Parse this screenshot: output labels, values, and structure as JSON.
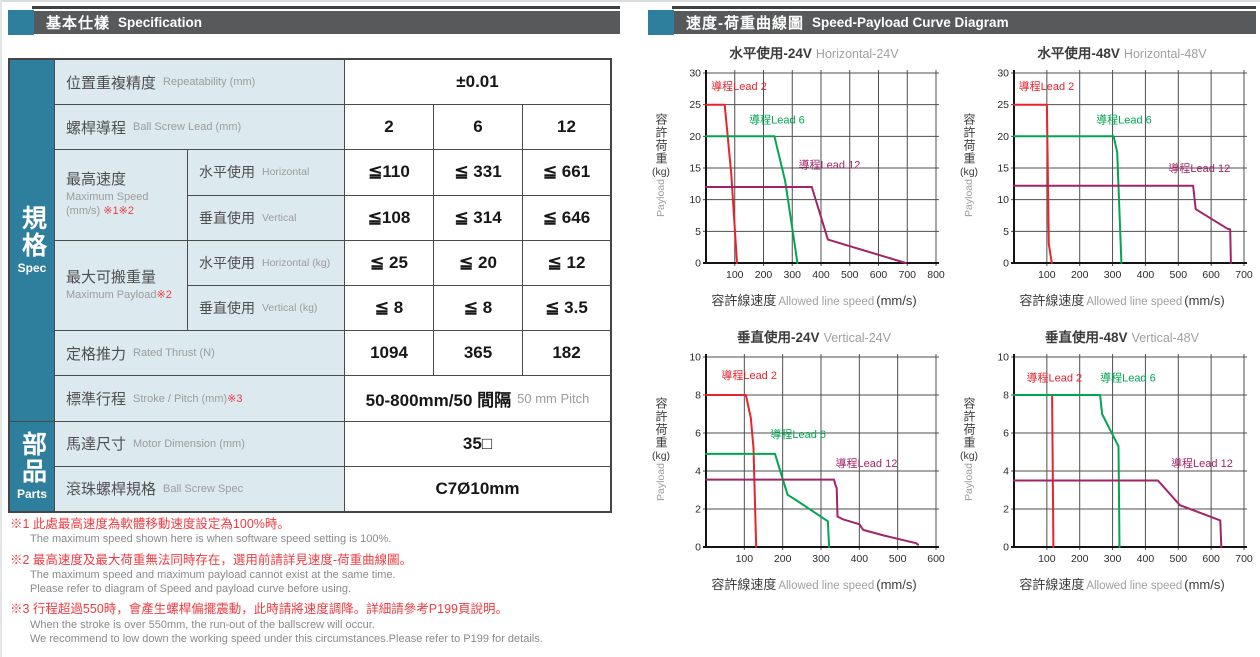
{
  "left": {
    "header": {
      "zh": "基本仕樣",
      "en": "Specification"
    },
    "sidebar": {
      "spec_zh": "規格",
      "spec_en": "Spec",
      "parts_zh": "部品",
      "parts_en": "Parts"
    },
    "rows": {
      "repeatability": {
        "zh": "位置重複精度",
        "en": "Repeatability (mm)",
        "value": "±0.01"
      },
      "lead": {
        "zh": "螺桿導程",
        "en": "Ball Screw Lead (mm)",
        "values": [
          "2",
          "6",
          "12"
        ]
      },
      "max_speed": {
        "zh": "最高速度",
        "en1": "Maximum Speed",
        "en2": "(mm/s)",
        "note": "※1※2",
        "horizontal": {
          "zh": "水平使用",
          "en": "Horizontal",
          "values": [
            "≦110",
            "≦ 331",
            "≦ 661"
          ]
        },
        "vertical": {
          "zh": "垂直使用",
          "en": "Vertical",
          "values": [
            "≦108",
            "≦ 314",
            "≦ 646"
          ]
        }
      },
      "max_payload": {
        "zh": "最大可搬重量",
        "en": "Maximum Payload",
        "note": "※2",
        "horizontal": {
          "zh": "水平使用",
          "en": "Horizontal (kg)",
          "values": [
            "≦ 25",
            "≦ 20",
            "≦ 12"
          ]
        },
        "vertical": {
          "zh": "垂直使用",
          "en": "Vertical (kg)",
          "values": [
            "≦ 8",
            "≦ 8",
            "≦ 3.5"
          ]
        }
      },
      "thrust": {
        "zh": "定格推力",
        "en": "Rated Thrust (N)",
        "values": [
          "1094",
          "365",
          "182"
        ]
      },
      "stroke": {
        "zh": "標準行程",
        "en": "Stroke / Pitch (mm)",
        "note": "※3",
        "value_main": "50-800mm/50 間隔",
        "value_sub": "50 mm Pitch"
      },
      "motor": {
        "zh": "馬達尺寸",
        "en": "Motor Dimension (mm)",
        "value": "35□"
      },
      "ballscrew": {
        "zh": "滾珠螺桿規格",
        "en": "Ball Screw Spec",
        "value": "C7Ø10mm"
      }
    },
    "footnotes": [
      {
        "red": "※1 此處最高速度為軟體移動速度設定為100%時。",
        "gray": [
          "The maximum speed shown here is when software speed setting is 100%."
        ]
      },
      {
        "red": "※2 最高速度及最大荷重無法同時存在，選用前請詳見速度-荷重曲線圖。",
        "gray": [
          "The maximum speed and maximum payload cannot exist at the same time.",
          "Please refer to diagram of Speed and payload curve before using."
        ]
      },
      {
        "red": "※3 行程超過550時，會產生螺桿偏擺震動，此時請將速度調降。詳細請參考P199頁說明。",
        "gray": [
          "When the stroke is over 550mm, the run-out of the ballscrew will occur.",
          "We recommend to low down the working speed under this circumstances.Please refer to P199 for details."
        ]
      }
    ]
  },
  "right": {
    "header": {
      "zh": "速度-荷重曲線圖",
      "en": "Speed-Payload Curve Diagram"
    }
  },
  "colors": {
    "teal_accent": "#2e7e9d",
    "header_bar": "#58595b",
    "label_cell": "#dce9ef",
    "footnote_red": "#ef3b42",
    "lead2_red": "#e8232d",
    "lead6_green": "#00a651",
    "lead12_magenta": "#a32367"
  },
  "chart_data": [
    {
      "id": "horizontal-24v",
      "type": "line",
      "title_zh": "水平使用-24V",
      "title_en": "Horizontal-24V",
      "xlabel_zh": "容許線速度",
      "xlabel_en": "Allowed line speed",
      "xlabel_unit": "(mm/s)",
      "ylabel_zh": "容許荷重",
      "ylabel_unit": "(kg)",
      "ylabel_en": "Payload",
      "xlim": [
        0,
        800
      ],
      "ylim": [
        0,
        30
      ],
      "xtick_step": 100,
      "ytick_step": 5,
      "grid": true,
      "series": [
        {
          "name": "導程Lead 2",
          "color": "#e8232d",
          "label_pos": [
            18,
            27.3
          ],
          "points": [
            [
              0,
              25
            ],
            [
              65,
              25
            ],
            [
              88,
              14
            ],
            [
              108,
              0
            ]
          ]
        },
        {
          "name": "導程Lead 6",
          "color": "#00a651",
          "label_pos": [
            150,
            22
          ],
          "points": [
            [
              0,
              20
            ],
            [
              238,
              20
            ],
            [
              275,
              13
            ],
            [
              305,
              4
            ],
            [
              318,
              0
            ]
          ]
        },
        {
          "name": "導程Lead 12",
          "color": "#a32367",
          "label_pos": [
            322,
            14.9
          ],
          "points": [
            [
              0,
              12
            ],
            [
              368,
              12
            ],
            [
              424,
              3.7
            ],
            [
              695,
              0
            ]
          ]
        }
      ]
    },
    {
      "id": "horizontal-48v",
      "type": "line",
      "title_zh": "水平使用-48V",
      "title_en": "Horizontal-48V",
      "xlabel_zh": "容許線速度",
      "xlabel_en": "Allowed line speed",
      "xlabel_unit": "(mm/s)",
      "ylabel_zh": "容許荷重",
      "ylabel_unit": "(kg)",
      "ylabel_en": "Payload",
      "xlim": [
        0,
        700
      ],
      "ylim": [
        0,
        30
      ],
      "xtick_step": 100,
      "ytick_step": 5,
      "grid": true,
      "series": [
        {
          "name": "導程Lead 2",
          "color": "#e8232d",
          "label_pos": [
            14,
            27.3
          ],
          "points": [
            [
              0,
              25
            ],
            [
              100,
              25
            ],
            [
              106,
              3
            ],
            [
              115,
              0
            ]
          ]
        },
        {
          "name": "導程Lead 6",
          "color": "#00a651",
          "label_pos": [
            250,
            22
          ],
          "points": [
            [
              0,
              20
            ],
            [
              303,
              20
            ],
            [
              314,
              17.5
            ],
            [
              327,
              0
            ]
          ]
        },
        {
          "name": "導程Lead 12",
          "color": "#a32367",
          "label_pos": [
            470,
            14.4
          ],
          "points": [
            [
              0,
              12.2
            ],
            [
              545,
              12.2
            ],
            [
              553,
              8.5
            ],
            [
              650,
              5.4
            ],
            [
              658,
              5.3
            ],
            [
              660,
              0
            ]
          ]
        }
      ]
    },
    {
      "id": "vertical-24v",
      "type": "line",
      "title_zh": "垂直使用-24V",
      "title_en": "Vertical-24V",
      "xlabel_zh": "容許線速度",
      "xlabel_en": "Allowed line speed",
      "xlabel_unit": "(mm/s)",
      "ylabel_zh": "容許荷重",
      "ylabel_unit": "(kg)",
      "ylabel_en": "Payload",
      "xlim": [
        0,
        600
      ],
      "ylim": [
        0,
        10
      ],
      "xtick_step": 100,
      "ytick_step": 2,
      "grid": true,
      "series": [
        {
          "name": "導程Lead 2",
          "color": "#e8232d",
          "label_pos": [
            40,
            8.85
          ],
          "points": [
            [
              0,
              8
            ],
            [
              104,
              8
            ],
            [
              117,
              6.8
            ],
            [
              124,
              5.2
            ],
            [
              129,
              1.5
            ],
            [
              131,
              0
            ]
          ]
        },
        {
          "name": "導程Lead 6",
          "color": "#00a651",
          "label_pos": [
            168,
            5.75
          ],
          "points": [
            [
              0,
              4.9
            ],
            [
              180,
              4.9
            ],
            [
              213,
              2.75
            ],
            [
              240,
              2.4
            ],
            [
              318,
              1.35
            ],
            [
              321,
              0
            ]
          ]
        },
        {
          "name": "導程Lead 12",
          "color": "#a32367",
          "label_pos": [
            338,
            4.2
          ],
          "points": [
            [
              0,
              3.55
            ],
            [
              334,
              3.55
            ],
            [
              337,
              3.3
            ],
            [
              341,
              3.1
            ],
            [
              343,
              1.6
            ],
            [
              358,
              1.45
            ],
            [
              400,
              1.2
            ],
            [
              410,
              0.9
            ],
            [
              465,
              0.6
            ],
            [
              548,
              0.2
            ],
            [
              553,
              0.12
            ]
          ]
        }
      ]
    },
    {
      "id": "vertical-48v",
      "type": "line",
      "title_zh": "垂直使用-48V",
      "title_en": "Vertical-48V",
      "xlabel_zh": "容許線速度",
      "xlabel_en": "Allowed line speed",
      "xlabel_unit": "(mm/s)",
      "ylabel_zh": "容許荷重",
      "ylabel_unit": "(kg)",
      "ylabel_en": "Payload",
      "xlim": [
        0,
        700
      ],
      "ylim": [
        0,
        10
      ],
      "xtick_step": 100,
      "ytick_step": 2,
      "grid": true,
      "series": [
        {
          "name": "導程Lead 2",
          "color": "#e8232d",
          "label_pos": [
            38,
            8.7
          ],
          "points": [
            [
              0,
              8
            ],
            [
              116,
              8
            ],
            [
              120,
              0
            ]
          ]
        },
        {
          "name": "導程Lead 6",
          "color": "#00a651",
          "label_pos": [
            262,
            8.7
          ],
          "points": [
            [
              0,
              8
            ],
            [
              262,
              8
            ],
            [
              268,
              7
            ],
            [
              318,
              5.3
            ],
            [
              321,
              0
            ]
          ]
        },
        {
          "name": "導程Lead 12",
          "color": "#a32367",
          "label_pos": [
            478,
            4.2
          ],
          "points": [
            [
              0,
              3.5
            ],
            [
              438,
              3.5
            ],
            [
              505,
              2.2
            ],
            [
              628,
              1.4
            ],
            [
              631,
              0
            ]
          ]
        }
      ]
    }
  ]
}
